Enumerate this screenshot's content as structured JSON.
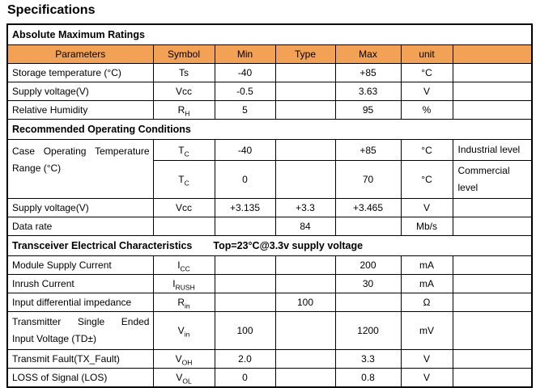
{
  "page": {
    "title": "Specifications"
  },
  "colors": {
    "table_header_bg": "#F2A155",
    "border": "#000000",
    "text": "#000000",
    "background": "#FFFFFF"
  },
  "table": {
    "columns": [
      {
        "label": "Parameters"
      },
      {
        "label": "Symbol"
      },
      {
        "label": "Min"
      },
      {
        "label": "Type"
      },
      {
        "label": "Max"
      },
      {
        "label": "unit"
      },
      {
        "label": ""
      }
    ],
    "sections": [
      {
        "title": "Absolute Maximum Ratings",
        "condition": "",
        "show_column_header": true,
        "rows": [
          {
            "param": "Storage temperature (°C)",
            "symbol": [
              "Ts",
              ""
            ],
            "min": "-40",
            "type": "",
            "max": "+85",
            "unit": "°C",
            "note": ""
          },
          {
            "param": "Supply voltage(V)",
            "symbol": [
              "Vcc",
              ""
            ],
            "min": "-0.5",
            "type": "",
            "max": "3.63",
            "unit": "V",
            "note": ""
          },
          {
            "param": "Relative Humidity",
            "symbol": [
              "R",
              "H"
            ],
            "min": "5",
            "type": "",
            "max": "95",
            "unit": "%",
            "note": ""
          }
        ]
      },
      {
        "title": "Recommended Operating Conditions",
        "condition": "",
        "show_column_header": false,
        "rows": [
          {
            "param": {
              "lines": [
                {
                  "justify": true,
                  "words": [
                    "Case",
                    "Operating",
                    "Temperature"
                  ]
                },
                {
                  "text": "Range (°C)"
                }
              ]
            },
            "param_rowspan": 2,
            "symbol": [
              "T",
              "C"
            ],
            "min": "-40",
            "type": "",
            "max": "+85",
            "unit": "°C",
            "note": "Industrial level"
          },
          {
            "symbol": [
              "T",
              "C"
            ],
            "min": "0",
            "type": "",
            "max": "70",
            "unit": "°C",
            "note": "Commercial level"
          },
          {
            "param": "Supply voltage(V)",
            "symbol": [
              "Vcc",
              ""
            ],
            "min": "+3.135",
            "type": "+3.3",
            "max": "+3.465",
            "unit": "V",
            "note": ""
          },
          {
            "param": "Data rate",
            "symbol": [
              "",
              ""
            ],
            "min": "",
            "type": "84",
            "max": "",
            "unit": "Mb/s",
            "note": ""
          }
        ]
      },
      {
        "title": "Transceiver Electrical Characteristics",
        "condition": "Top=23°C@3.3v supply voltage",
        "show_column_header": false,
        "rows": [
          {
            "param": "Module Supply Current",
            "symbol": [
              "I",
              "CC"
            ],
            "min": "",
            "type": "",
            "max": "200",
            "unit": "mA",
            "note": ""
          },
          {
            "param": "Inrush Current",
            "symbol": [
              "I",
              "RUSH"
            ],
            "min": "",
            "type": "",
            "max": "30",
            "unit": "mA",
            "note": ""
          },
          {
            "param": "Input differential impedance",
            "symbol": [
              "R",
              "in"
            ],
            "min": "",
            "type": "100",
            "max": "",
            "unit": "Ω",
            "note": ""
          },
          {
            "param": {
              "lines": [
                {
                  "justify": true,
                  "words": [
                    "Transmitter",
                    "Single",
                    "Ended"
                  ]
                },
                {
                  "text": "Input Voltage (TD±)"
                }
              ]
            },
            "symbol": [
              "V",
              "in"
            ],
            "min": "100",
            "type": "",
            "max": "1200",
            "unit": "mV",
            "note": ""
          },
          {
            "param": "Transmit Fault(TX_Fault)",
            "symbol": [
              "V",
              "OH"
            ],
            "min": "2.0",
            "type": "",
            "max": "3.3",
            "unit": "V",
            "note": ""
          },
          {
            "param": "LOSS of Signal (LOS)",
            "symbol": [
              "V",
              "OL"
            ],
            "min": "0",
            "type": "",
            "max": "0.8",
            "unit": "V",
            "note": ""
          }
        ]
      }
    ]
  }
}
